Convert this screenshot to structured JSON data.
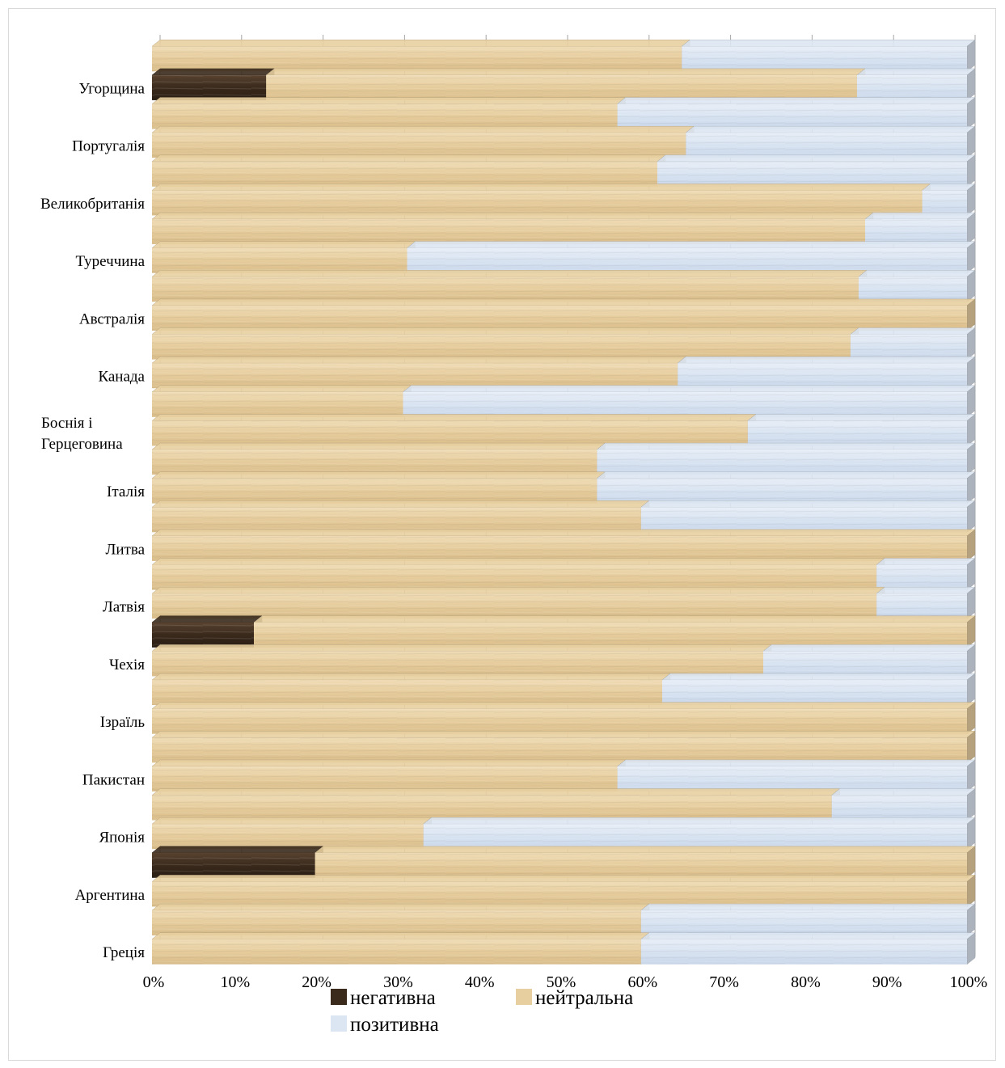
{
  "chart_data": {
    "type": "bar",
    "orientation": "horizontal",
    "stacked": "percent",
    "title": "",
    "xlabel": "",
    "ylabel": "",
    "xlim": [
      0,
      100
    ],
    "x_ticks": [
      "0%",
      "10%",
      "20%",
      "30%",
      "40%",
      "50%",
      "60%",
      "70%",
      "80%",
      "90%",
      "100%"
    ],
    "grid": "vertical",
    "legend_position": "bottom",
    "categories": [
      "",
      "Угорщина",
      "",
      "Португалія",
      "",
      "Великобританія",
      "",
      "Туреччина",
      "",
      "Австралія",
      "",
      "Канада",
      "",
      "Боснія і Герцеговина",
      "",
      "Італія",
      "",
      "Литва",
      "",
      "Латвія",
      "",
      "Чехія",
      "",
      "Ізраїль",
      "",
      "Пакистан",
      "",
      "Японія",
      "",
      "Аргентина",
      "",
      "Греція"
    ],
    "series": [
      {
        "name": "негативна",
        "color": "#3a2a1c",
        "values": [
          0,
          14,
          0,
          0,
          0,
          0,
          0,
          0,
          0,
          0,
          0,
          0,
          0,
          0,
          0,
          0,
          0,
          0,
          0,
          0,
          12.5,
          0,
          0,
          0,
          0,
          0,
          0,
          0,
          20,
          0,
          0,
          0
        ]
      },
      {
        "name": "нейтральна",
        "color": "#e8cfa0",
        "values": [
          65,
          72.5,
          57.1,
          65.5,
          62,
          94.5,
          87.5,
          31.3,
          86.7,
          100,
          85.7,
          64.5,
          30.8,
          73.1,
          54.6,
          54.6,
          60,
          100,
          88.9,
          88.9,
          87.5,
          75,
          62.6,
          100,
          100,
          57.1,
          83.4,
          33.3,
          80,
          100,
          60,
          60
        ]
      },
      {
        "name": "позитивна",
        "color": "#dce6f2",
        "values": [
          35,
          13.5,
          42.9,
          34.5,
          38,
          5.5,
          12.5,
          68.7,
          13.3,
          0,
          14.3,
          35.5,
          69.2,
          26.9,
          45.4,
          45.4,
          40,
          0,
          11.1,
          11.1,
          0,
          25,
          37.4,
          0,
          0,
          42.9,
          16.6,
          66.7,
          0,
          0,
          40,
          40
        ]
      }
    ]
  }
}
